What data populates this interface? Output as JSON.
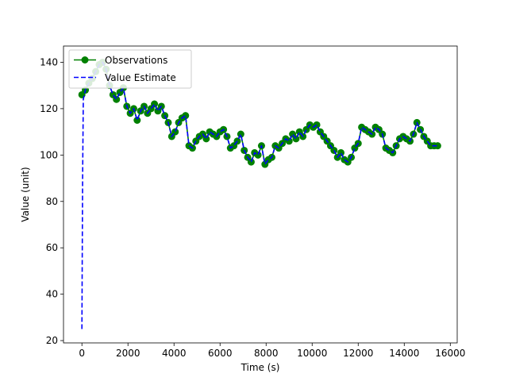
{
  "chart_data": {
    "type": "line",
    "title": "",
    "xlabel": "Time (s)",
    "ylabel": "Value (unit)",
    "xlim": [
      -800,
      16300
    ],
    "ylim": [
      19,
      147
    ],
    "xticks": [
      0,
      2000,
      4000,
      6000,
      8000,
      10000,
      12000,
      14000,
      16000
    ],
    "yticks": [
      20,
      40,
      60,
      80,
      100,
      120,
      140
    ],
    "xtick_labels": [
      "0",
      "2000",
      "4000",
      "6000",
      "8000",
      "10000",
      "12000",
      "14000",
      "16000"
    ],
    "ytick_labels": [
      "20",
      "40",
      "60",
      "80",
      "100",
      "120",
      "140"
    ],
    "grid": false,
    "legend": {
      "position": "top-left",
      "entries": [
        "Observations",
        "Value Estimate"
      ]
    },
    "colors": {
      "observations": "#008000",
      "estimate": "#0000ff"
    },
    "series": [
      {
        "name": "Observations",
        "style": "solid line with circle markers",
        "x": [
          0,
          150,
          300,
          450,
          600,
          750,
          900,
          1050,
          1200,
          1350,
          1500,
          1650,
          1800,
          1950,
          2100,
          2250,
          2400,
          2550,
          2700,
          2850,
          3000,
          3150,
          3300,
          3450,
          3600,
          3750,
          3900,
          4050,
          4200,
          4350,
          4500,
          4650,
          4800,
          4950,
          5100,
          5250,
          5400,
          5550,
          5700,
          5850,
          6000,
          6150,
          6300,
          6450,
          6600,
          6750,
          6900,
          7050,
          7200,
          7350,
          7500,
          7650,
          7800,
          7950,
          8100,
          8250,
          8400,
          8550,
          8700,
          8850,
          9000,
          9150,
          9300,
          9450,
          9600,
          9750,
          9900,
          10050,
          10200,
          10350,
          10500,
          10650,
          10800,
          10950,
          11100,
          11250,
          11400,
          11550,
          11700,
          11850,
          12000,
          12150,
          12300,
          12450,
          12600,
          12750,
          12900,
          13050,
          13200,
          13350,
          13500,
          13650,
          13800,
          13950,
          14100,
          14250,
          14400,
          14550,
          14700,
          14850,
          15000,
          15150,
          15300,
          15450
        ],
        "values": [
          126,
          128,
          131,
          133,
          136,
          139,
          140,
          137,
          130,
          126,
          124,
          127,
          129,
          121,
          118,
          120,
          115,
          119,
          121,
          118,
          120,
          122,
          119,
          121,
          117,
          114,
          108,
          110,
          114,
          116,
          117,
          104,
          103,
          106,
          108,
          109,
          107,
          110,
          109,
          108,
          110,
          111,
          108,
          103,
          104,
          106,
          109,
          102,
          99,
          97,
          101,
          100,
          104,
          96,
          98,
          99,
          104,
          103,
          105,
          107,
          106,
          109,
          107,
          110,
          108,
          111,
          113,
          112,
          113,
          110,
          108,
          106,
          104,
          102,
          99,
          101,
          98,
          97,
          99,
          103,
          105,
          112,
          111,
          110,
          109,
          112,
          111,
          109,
          103,
          102,
          101,
          104,
          107,
          108,
          107,
          106,
          109,
          114,
          111,
          108,
          106,
          104,
          104,
          104
        ]
      },
      {
        "name": "Value Estimate",
        "style": "dashed line",
        "x": [
          0,
          30,
          60,
          150,
          300,
          450,
          600,
          750,
          900,
          1050,
          1200,
          1350,
          1500,
          1650,
          1800,
          1950,
          2100,
          2250,
          2400,
          2550,
          2700,
          2850,
          3000,
          3150,
          3300,
          3450,
          3600,
          3750,
          3900,
          4050,
          4200,
          4350,
          4500,
          4650,
          4800,
          4950,
          5100,
          5250,
          5400,
          5550,
          5700,
          5850,
          6000,
          6150,
          6300,
          6450,
          6600,
          6750,
          6900,
          7050,
          7200,
          7350,
          7500,
          7650,
          7800,
          7950,
          8100,
          8250,
          8400,
          8550,
          8700,
          8850,
          9000,
          9150,
          9300,
          9450,
          9600,
          9750,
          9900,
          10050,
          10200,
          10350,
          10500,
          10650,
          10800,
          10950,
          11100,
          11250,
          11400,
          11550,
          11700,
          11850,
          12000,
          12150,
          12300,
          12450,
          12600,
          12750,
          12900,
          13050,
          13200,
          13350,
          13500,
          13650,
          13800,
          13950,
          14100,
          14250,
          14400,
          14550,
          14700,
          14850,
          15000,
          15150,
          15300,
          15450
        ],
        "values": [
          25,
          90,
          124,
          128,
          131,
          133,
          136,
          139,
          140,
          137,
          130,
          126,
          124,
          127,
          129,
          121,
          118,
          120,
          115,
          119,
          121,
          118,
          120,
          122,
          119,
          121,
          117,
          114,
          108,
          110,
          114,
          116,
          117,
          104,
          103,
          106,
          108,
          109,
          107,
          110,
          109,
          108,
          110,
          111,
          108,
          103,
          104,
          106,
          109,
          102,
          99,
          97,
          101,
          100,
          104,
          96,
          98,
          99,
          104,
          103,
          105,
          107,
          106,
          109,
          107,
          110,
          108,
          111,
          113,
          112,
          113,
          110,
          108,
          106,
          104,
          102,
          99,
          101,
          98,
          97,
          99,
          103,
          105,
          112,
          111,
          110,
          109,
          112,
          111,
          109,
          103,
          102,
          101,
          104,
          107,
          108,
          107,
          106,
          109,
          114,
          111,
          108,
          106,
          104,
          104,
          104
        ]
      }
    ]
  }
}
